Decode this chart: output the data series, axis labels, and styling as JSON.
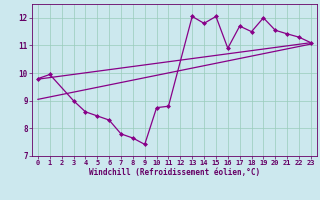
{
  "bg_color": "#cce8ee",
  "line_color": "#880088",
  "grid_color": "#99ccbb",
  "tick_color": "#660066",
  "line1_x": [
    0,
    1,
    3,
    4,
    5,
    6,
    7,
    8,
    9,
    10,
    11,
    13,
    14,
    15,
    16,
    17,
    18,
    19,
    20,
    21,
    22,
    23
  ],
  "line1_y": [
    9.8,
    9.95,
    9.0,
    8.6,
    8.45,
    8.3,
    7.8,
    7.65,
    7.42,
    8.75,
    8.8,
    12.05,
    11.8,
    12.05,
    10.9,
    11.7,
    11.5,
    12.0,
    11.55,
    11.42,
    11.3,
    11.1
  ],
  "trend1_x": [
    0,
    23
  ],
  "trend1_y": [
    9.78,
    11.1
  ],
  "trend2_x": [
    0,
    23
  ],
  "trend2_y": [
    9.05,
    11.05
  ],
  "xlim": [
    -0.5,
    23.5
  ],
  "ylim": [
    7.0,
    12.5
  ],
  "yticks": [
    7,
    8,
    9,
    10,
    11,
    12
  ],
  "xticks": [
    0,
    1,
    2,
    3,
    4,
    5,
    6,
    7,
    8,
    9,
    10,
    11,
    12,
    13,
    14,
    15,
    16,
    17,
    18,
    19,
    20,
    21,
    22,
    23
  ],
  "xlabel": "Windchill (Refroidissement éolien,°C)",
  "xlabel_fontsize": 5.5,
  "tick_fontsize": 5.0,
  "marker": "D",
  "markersize": 2.0,
  "linewidth": 0.9
}
